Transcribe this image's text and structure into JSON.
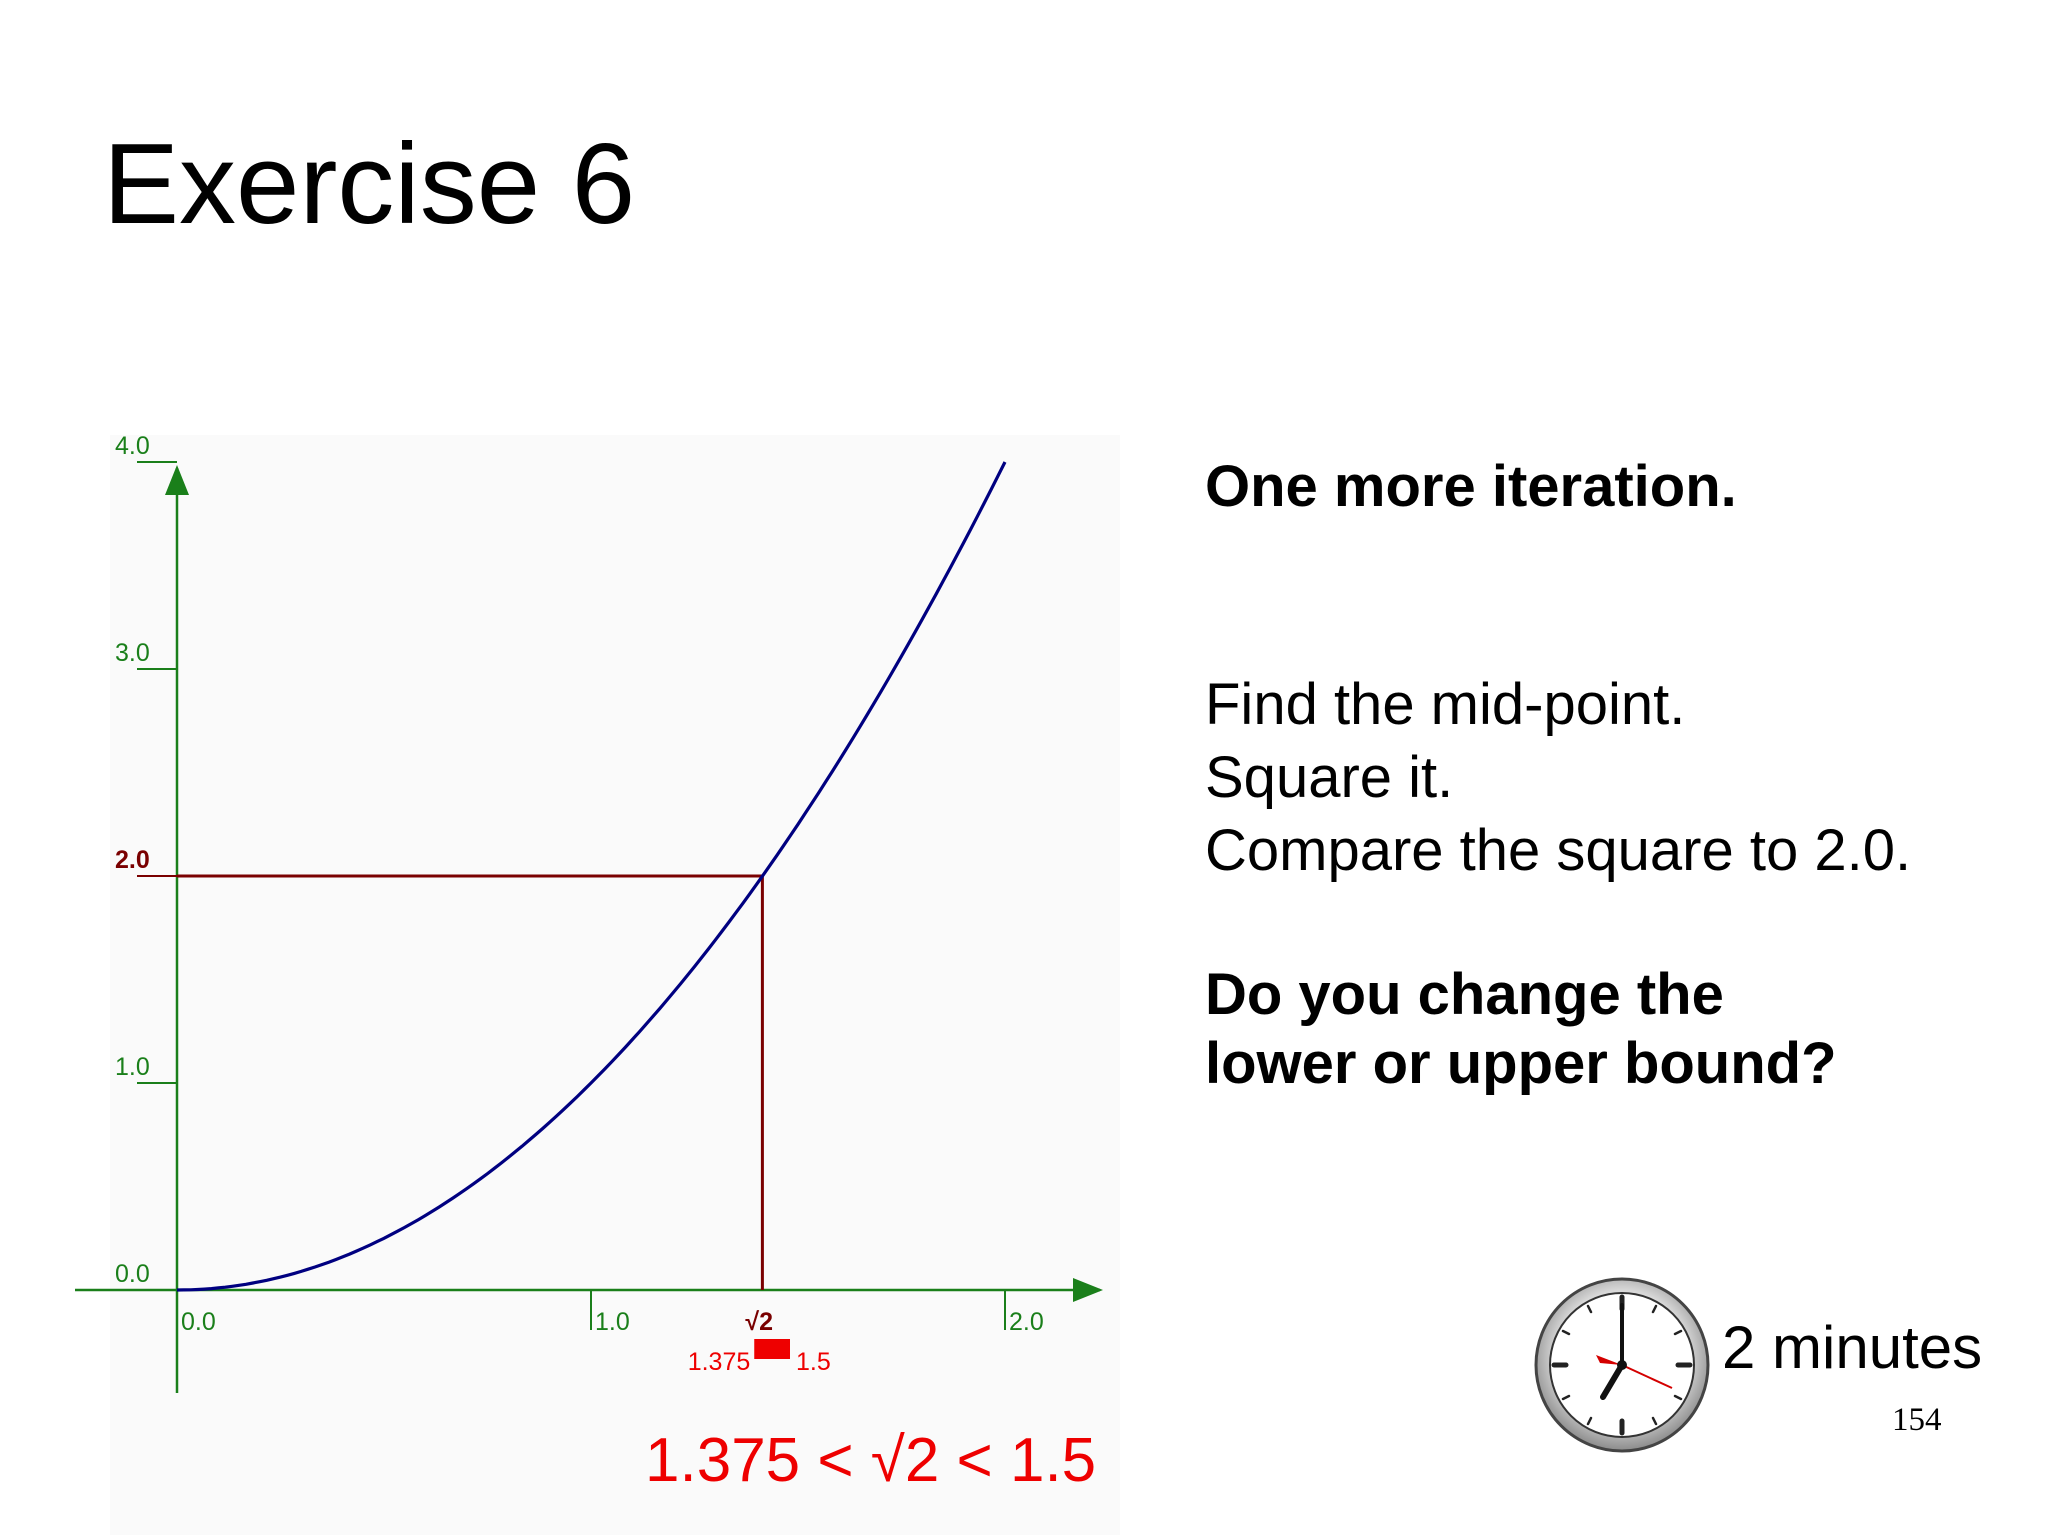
{
  "slide": {
    "title": "Exercise 6",
    "page_number": "154",
    "bound_caption": "1.375 < √2 < 1.5",
    "instructions": {
      "heading": "One more iteration.",
      "steps": [
        "Find the mid-point.",
        "Square it.",
        "Compare the square to 2.0."
      ],
      "question_lines": [
        "Do you change the",
        "lower or upper bound?"
      ]
    },
    "timer": {
      "label": "2 minutes",
      "icon": "clock-icon"
    }
  },
  "chart_data": {
    "type": "line",
    "function": "y = x^2",
    "x_ticks": [
      "0.0",
      "1.0",
      "2.0"
    ],
    "y_ticks": [
      "0.0",
      "1.0",
      "2.0",
      "3.0",
      "4.0"
    ],
    "xlim": [
      0,
      2.0
    ],
    "ylim": [
      0,
      4.0
    ],
    "series": [
      {
        "x": [
          0,
          0.25,
          0.5,
          0.75,
          1.0,
          1.25,
          1.414,
          1.5,
          1.75,
          2.0
        ],
        "y": [
          0,
          0.0625,
          0.25,
          0.5625,
          1.0,
          1.5625,
          2.0,
          2.25,
          3.0625,
          4.0
        ]
      }
    ],
    "marker": {
      "x_label": "√2",
      "y_label": "2.0",
      "x": 1.414,
      "y": 2.0
    },
    "interval": {
      "lower_label": "1.375",
      "upper_label": "1.5",
      "lower": 1.375,
      "upper": 1.5
    },
    "colors": {
      "axis": "#1a7f1a",
      "curve": "#000080",
      "marker": "#7a0000",
      "interval": "#ee0000"
    }
  }
}
